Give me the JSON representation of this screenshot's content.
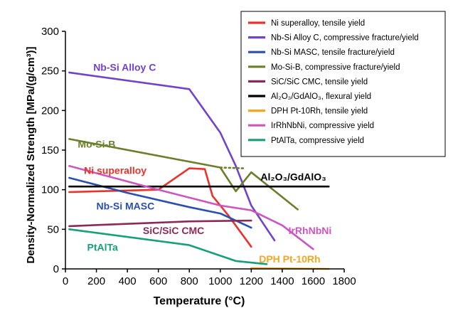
{
  "chart_data": {
    "type": "line",
    "xlabel": "Temperature (°C)",
    "ylabel": "Density-Normalized Strength [MPa/(g/cm³)]",
    "xlim": [
      0,
      1800
    ],
    "ylim": [
      0,
      300
    ],
    "xticks": [
      "0",
      "200",
      "400",
      "600",
      "800",
      "1000",
      "1200",
      "1400",
      "1600",
      "1800"
    ],
    "yticks": [
      "0",
      "50",
      "100",
      "150",
      "200",
      "250",
      "300"
    ],
    "legend_position": "top-right",
    "series": [
      {
        "name": "Ni superalloy, tensile yield",
        "color": "#e8332a",
        "x": [
          25,
          600,
          800,
          900,
          950,
          1050,
          1200
        ],
        "y": [
          97,
          100,
          127,
          126,
          92,
          68,
          28
        ]
      },
      {
        "name": "Nb-Si Alloy C, compressive fracture/yield",
        "color": "#7044c8",
        "x": [
          25,
          800,
          1000,
          1100,
          1200,
          1350
        ],
        "y": [
          248,
          227,
          172,
          130,
          80,
          36
        ]
      },
      {
        "name": "Nb-Si MASC, tensile fracture/yield",
        "color": "#2a4fb0",
        "x": [
          25,
          400,
          800,
          1000,
          1200
        ],
        "y": [
          115,
          96,
          78,
          70,
          52
        ]
      },
      {
        "name": "Mo-Si-B, compressive fracture/yield",
        "color": "#6b7f2a",
        "x": [
          25,
          1000,
          1100,
          1200,
          1500
        ],
        "y": [
          164,
          128,
          98,
          122,
          75
        ],
        "dotted": {
          "x": [
            1000,
            1150
          ],
          "y": [
            128,
            127
          ]
        }
      },
      {
        "name": "SiC/SiC CMC, tensile yield",
        "color": "#8b2a5a",
        "x": [
          25,
          800,
          1200
        ],
        "y": [
          54,
          60,
          61
        ]
      },
      {
        "name": "Al₂O₃/GdAlO₃, flexural yield",
        "color": "#000000",
        "x": [
          25,
          1700
        ],
        "y": [
          104,
          104
        ]
      },
      {
        "name": "DPH Pt-10Rh, tensile yield",
        "color": "#f5a623",
        "x": [
          1200,
          1700
        ],
        "y": [
          1,
          0
        ]
      },
      {
        "name": "IrRhNbNi, compressive yield",
        "color": "#cc55c0",
        "x": [
          25,
          600,
          1000,
          1200,
          1400,
          1600
        ],
        "y": [
          130,
          100,
          80,
          74,
          55,
          25
        ]
      },
      {
        "name": "PtAlTa, compressive yield",
        "color": "#17a078",
        "x": [
          25,
          800,
          1100,
          1300
        ],
        "y": [
          50,
          30,
          10,
          6
        ]
      }
    ],
    "annotations": [
      {
        "text": "Nb-Si Alloy C",
        "color": "#7044c8",
        "x": 180,
        "y": 250
      },
      {
        "text": "Mo-Si-B",
        "color": "#6b7f2a",
        "x": 80,
        "y": 153
      },
      {
        "text": "Ni superalloy",
        "color": "#e8332a",
        "x": 120,
        "y": 120
      },
      {
        "text": "Al₂O₃/GdAlO₃",
        "color": "#000000",
        "x": 1260,
        "y": 112
      },
      {
        "text": "Nb-Si MASC",
        "color": "#2a4fb0",
        "x": 200,
        "y": 75
      },
      {
        "text": "SiC/SiC CMC",
        "color": "#8b2a5a",
        "x": 500,
        "y": 44
      },
      {
        "text": "IrRhNbNi",
        "color": "#cc55c0",
        "x": 1440,
        "y": 44
      },
      {
        "text": "PtAlTa",
        "color": "#17a078",
        "x": 140,
        "y": 23
      },
      {
        "text": "DPH Pt-10Rh",
        "color": "#f5a623",
        "x": 1250,
        "y": 8
      }
    ]
  }
}
